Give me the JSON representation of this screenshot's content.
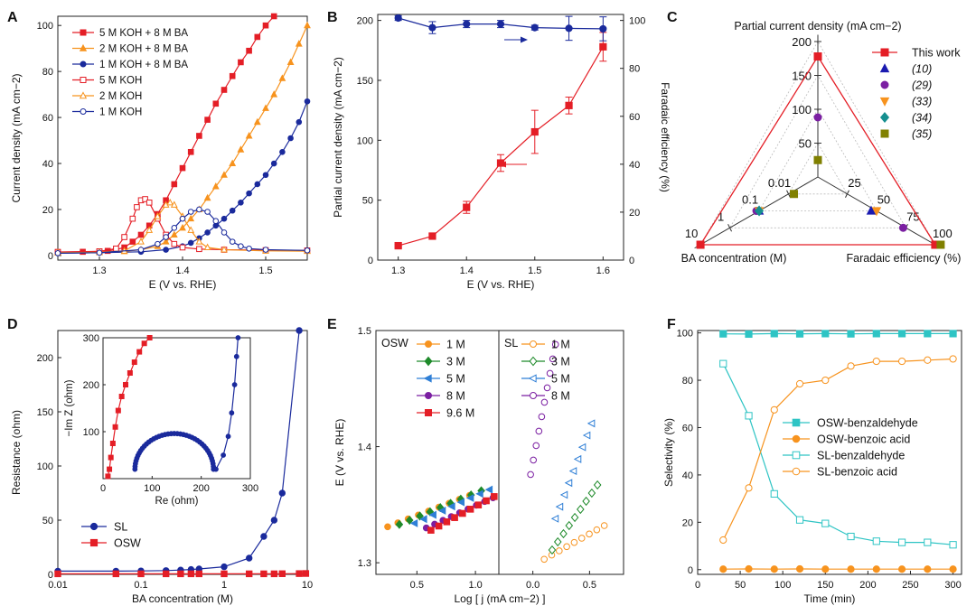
{
  "panels": {
    "A": "A",
    "B": "B",
    "C": "C",
    "D": "D",
    "E": "E",
    "F": "F"
  },
  "chart_data": [
    {
      "panel": "A",
      "type": "line",
      "xlabel": "E (V vs. RHE)",
      "ylabel": "Current density (mA cm−2)",
      "xlim": [
        1.25,
        1.55
      ],
      "ylim": [
        -2,
        104
      ],
      "xticks": [
        1.3,
        1.4,
        1.5
      ],
      "yticks": [
        0,
        20,
        40,
        60,
        80,
        100
      ],
      "legend": "top-left",
      "series": [
        {
          "name": "5 M KOH + 8 M BA",
          "color": "#e41e26",
          "marker": "square-filled",
          "x": [
            1.25,
            1.28,
            1.3,
            1.31,
            1.32,
            1.33,
            1.34,
            1.35,
            1.36,
            1.37,
            1.38,
            1.39,
            1.4,
            1.41,
            1.42,
            1.43,
            1.44,
            1.45,
            1.46,
            1.47,
            1.48,
            1.49,
            1.5,
            1.51
          ],
          "values": [
            1.5,
            1.6,
            1.8,
            2.0,
            2.5,
            3.5,
            6,
            9,
            13,
            18,
            24,
            31,
            38,
            45,
            52,
            59,
            66,
            72,
            78,
            84,
            89,
            95,
            100,
            104
          ]
        },
        {
          "name": "2 M KOH + 8 M BA",
          "color": "#f7931e",
          "marker": "triangle-filled",
          "x": [
            1.25,
            1.3,
            1.33,
            1.35,
            1.37,
            1.38,
            1.39,
            1.4,
            1.41,
            1.42,
            1.43,
            1.44,
            1.45,
            1.46,
            1.47,
            1.48,
            1.49,
            1.5,
            1.51,
            1.52,
            1.53,
            1.54,
            1.55
          ],
          "values": [
            1.2,
            1.4,
            1.8,
            2.5,
            4,
            6,
            9,
            12,
            16,
            20,
            25,
            30,
            35,
            40,
            46,
            52,
            58,
            64,
            70,
            77,
            84,
            92,
            100
          ]
        },
        {
          "name": "1 M KOH + 8 M BA",
          "color": "#1a2a9c",
          "marker": "circle-filled",
          "x": [
            1.25,
            1.3,
            1.35,
            1.38,
            1.4,
            1.41,
            1.42,
            1.43,
            1.44,
            1.45,
            1.46,
            1.47,
            1.48,
            1.49,
            1.5,
            1.51,
            1.52,
            1.53,
            1.54,
            1.55
          ],
          "values": [
            1.0,
            1.2,
            1.6,
            2.5,
            4,
            5.5,
            7.5,
            10,
            13,
            16,
            19.5,
            23,
            27,
            31,
            35,
            40,
            45,
            51,
            58,
            67
          ]
        },
        {
          "name": "5 M KOH",
          "color": "#e41e26",
          "marker": "square-open",
          "x": [
            1.25,
            1.3,
            1.32,
            1.33,
            1.34,
            1.345,
            1.35,
            1.355,
            1.36,
            1.37,
            1.38,
            1.39,
            1.4,
            1.42,
            1.45,
            1.5,
            1.55
          ],
          "values": [
            1.5,
            1.8,
            3,
            8,
            16,
            21,
            24,
            24.5,
            23,
            16,
            9,
            5,
            3.5,
            2.8,
            2.5,
            2.3,
            2.2
          ]
        },
        {
          "name": "2 M KOH",
          "color": "#f7931e",
          "marker": "triangle-open",
          "x": [
            1.25,
            1.3,
            1.33,
            1.35,
            1.36,
            1.37,
            1.38,
            1.385,
            1.39,
            1.4,
            1.41,
            1.42,
            1.43,
            1.45,
            1.5,
            1.55
          ],
          "values": [
            1.2,
            1.4,
            2,
            6,
            11,
            17,
            22,
            23,
            22,
            17,
            11,
            6,
            3.5,
            2.5,
            2.0,
            1.9
          ]
        },
        {
          "name": "1 M KOH",
          "color": "#1a2a9c",
          "marker": "circle-open",
          "x": [
            1.25,
            1.3,
            1.35,
            1.37,
            1.38,
            1.39,
            1.4,
            1.41,
            1.42,
            1.43,
            1.44,
            1.45,
            1.46,
            1.47,
            1.48,
            1.5,
            1.55
          ],
          "values": [
            1.0,
            1.2,
            2.5,
            5,
            8,
            12,
            16,
            19,
            20,
            19,
            15,
            10,
            6,
            4,
            3,
            2.5,
            2.2
          ]
        }
      ]
    },
    {
      "panel": "B",
      "type": "line",
      "xlabel": "E (V vs. RHE)",
      "ylabel": "Partial current density (mA cm−2)",
      "y2label": "Faradaic efficiency (%)",
      "xlim": [
        1.27,
        1.63
      ],
      "ylim": [
        0,
        205
      ],
      "y2lim": [
        0,
        102.5
      ],
      "xticks": [
        1.3,
        1.4,
        1.5,
        1.6
      ],
      "yticks": [
        0,
        50,
        100,
        150,
        200
      ],
      "y2ticks": [
        0,
        20,
        40,
        60,
        80,
        100
      ],
      "x": [
        1.3,
        1.35,
        1.4,
        1.45,
        1.5,
        1.55,
        1.6
      ],
      "series": [
        {
          "name": "Partial current density",
          "axis": "left",
          "color": "#e41e26",
          "marker": "square-filled",
          "values": [
            12,
            20,
            44,
            81,
            107,
            129,
            178
          ],
          "errors": [
            1,
            2,
            5,
            7,
            18,
            7,
            12
          ]
        },
        {
          "name": "Faradaic efficiency",
          "axis": "right",
          "color": "#1a2a9c",
          "marker": "circle-filled",
          "values": [
            101,
            97,
            98.5,
            98.5,
            97,
            96.7,
            96.5
          ],
          "errors": [
            1,
            2.5,
            1.5,
            1.5,
            1,
            5,
            5
          ]
        }
      ]
    },
    {
      "panel": "C",
      "type": "radar",
      "axes": [
        "Partial current density (mA cm−2)",
        "BA concentration (M)",
        "Faradaic efficiency (%)"
      ],
      "axis_ticks": {
        "current": [
          "50",
          "100",
          "150",
          "200"
        ],
        "ba": [
          "0.01",
          "0.1",
          "1",
          "10"
        ],
        "fe": [
          "25",
          "50",
          "75",
          "100"
        ]
      },
      "series": [
        {
          "name": "This work",
          "color": "#e41e26",
          "marker": "square",
          "current": 178,
          "ba": "10",
          "fe": 100
        },
        {
          "name": "(10)",
          "color": "#1a1ab0",
          "marker": "triangle-up",
          "current": null,
          "ba": "0.1",
          "fe": 50
        },
        {
          "name": "(29)",
          "color": "#7b1fa2",
          "marker": "circle",
          "current": 88,
          "ba": "0.1",
          "fe": 75
        },
        {
          "name": "(33)",
          "color": "#f7931e",
          "marker": "triangle-down",
          "current": null,
          "ba": "0.1",
          "fe": 50
        },
        {
          "name": "(34)",
          "color": "#168f8f",
          "marker": "diamond",
          "current": null,
          "ba": "0.1",
          "fe": null
        },
        {
          "name": "(35)",
          "color": "#808000",
          "marker": "square",
          "current": 25,
          "ba": "0.01",
          "fe": 100
        }
      ]
    },
    {
      "panel": "D",
      "type": "line",
      "xlabel": "BA concentration (M)",
      "ylabel": "Resistance (ohm)",
      "xscale": "log",
      "xlim": [
        0.01,
        10
      ],
      "ylim": [
        0,
        225
      ],
      "xticks": [
        "0.01",
        "0.1",
        "1",
        "10"
      ],
      "yticks": [
        0,
        50,
        100,
        150,
        200
      ],
      "legend": "bottom-left",
      "series": [
        {
          "name": "SL",
          "color": "#1a2a9c",
          "marker": "circle-filled",
          "x": [
            0.01,
            0.05,
            0.1,
            0.2,
            0.3,
            0.4,
            0.5,
            1,
            2,
            3,
            4,
            5,
            8
          ],
          "values": [
            3,
            3,
            3.2,
            3.5,
            4,
            4.5,
            5,
            7,
            15,
            35,
            50,
            75,
            225
          ]
        },
        {
          "name": "OSW",
          "color": "#e41e26",
          "marker": "square-filled",
          "x": [
            0.01,
            0.05,
            0.1,
            0.2,
            0.3,
            0.4,
            0.5,
            1,
            2,
            3,
            4,
            5,
            8,
            9.6
          ],
          "values": [
            0.5,
            0.5,
            0.5,
            0.5,
            0.5,
            0.5,
            0.5,
            0.5,
            0.5,
            0.5,
            0.5,
            0.6,
            0.7,
            0.8
          ]
        }
      ],
      "inset": {
        "type": "scatter",
        "xlabel": "Re (ohm)",
        "ylabel": "−Im Z (ohm)",
        "xlim": [
          0,
          300
        ],
        "ylim": [
          0,
          300
        ],
        "xticks": [
          0,
          100,
          200,
          300
        ],
        "yticks": [
          100,
          200,
          300
        ],
        "series": [
          {
            "name": "OSW",
            "color": "#e41e26",
            "marker": "square-filled",
            "x": [
              10,
              13,
              16,
              20,
              25,
              31,
              38,
              46,
              55,
              64,
              74,
              84,
              95
            ],
            "y": [
              5,
              20,
              45,
              75,
              110,
              145,
              175,
              200,
              225,
              248,
              270,
              288,
              300
            ]
          },
          {
            "name": "SL",
            "color": "#1a2a9c",
            "marker": "circle-filled",
            "semicircle": {
              "center": [
                145,
                0
              ],
              "radius": 80,
              "tail": [
                [
                  230,
                  20
                ],
                [
                  245,
                  50
                ],
                [
                  255,
                  90
                ],
                [
                  262,
                  140
                ],
                [
                  268,
                  200
                ],
                [
                  272,
                  260
                ],
                [
                  275,
                  300
                ]
              ]
            }
          }
        ]
      }
    },
    {
      "panel": "E",
      "type": "scatter",
      "xlabel": "Log [ j (mA cm−2) ]",
      "ylabel": "E (V vs. RHE)",
      "ylim": [
        1.29,
        1.5
      ],
      "yticks": [
        1.3,
        1.4,
        1.5
      ],
      "subpanels": [
        {
          "label": "OSW",
          "xlim": [
            0.15,
            1.2
          ],
          "xticks": [
            0.5,
            1.0
          ],
          "series": [
            {
              "name": "1 M",
              "color": "#f7931e",
              "marker": "circle-filled",
              "x0": 0.25,
              "x1": 0.95,
              "y0": 1.331,
              "y1": 1.358,
              "n": 9
            },
            {
              "name": "3 M",
              "color": "#1e8a2a",
              "marker": "diamond-filled",
              "x0": 0.35,
              "x1": 1.05,
              "y0": 1.333,
              "y1": 1.362,
              "n": 9
            },
            {
              "name": "5 M",
              "color": "#2f7fd6",
              "marker": "triangle-left-filled",
              "x0": 0.48,
              "x1": 1.12,
              "y0": 1.334,
              "y1": 1.363,
              "n": 9
            },
            {
              "name": "8 M",
              "color": "#7b1fa2",
              "marker": "circle-filled",
              "x0": 0.58,
              "x1": 1.15,
              "y0": 1.33,
              "y1": 1.356,
              "n": 9
            },
            {
              "name": "9.6 M",
              "color": "#e41e26",
              "marker": "square-filled",
              "x0": 0.62,
              "x1": 1.16,
              "y0": 1.328,
              "y1": 1.357,
              "n": 9
            }
          ]
        },
        {
          "label": "SL",
          "xlim": [
            -0.3,
            0.8
          ],
          "xticks": [
            0.0,
            0.5
          ],
          "series": [
            {
              "name": "1 M",
              "color": "#f7931e",
              "marker": "circle-open",
              "x0": 0.1,
              "x1": 0.63,
              "y0": 1.303,
              "y1": 1.332,
              "n": 9
            },
            {
              "name": "3 M",
              "color": "#1e8a2a",
              "marker": "diamond-open",
              "x0": 0.17,
              "x1": 0.57,
              "y0": 1.311,
              "y1": 1.367,
              "n": 9
            },
            {
              "name": "5 M",
              "color": "#2f7fd6",
              "marker": "triangle-left-open",
              "x0": 0.2,
              "x1": 0.52,
              "y0": 1.338,
              "y1": 1.42,
              "n": 9
            },
            {
              "name": "8 M",
              "color": "#7b1fa2",
              "marker": "circle-open",
              "x0": -0.02,
              "x1": 0.2,
              "y0": 1.376,
              "y1": 1.488,
              "n": 10
            }
          ]
        }
      ]
    },
    {
      "panel": "F",
      "type": "line",
      "xlabel": "Time (min)",
      "ylabel": "Selectivity (%)",
      "xlim": [
        0,
        310
      ],
      "ylim": [
        -2,
        101
      ],
      "xticks": [
        0,
        50,
        100,
        150,
        200,
        250,
        300
      ],
      "yticks": [
        0,
        20,
        40,
        60,
        80,
        100
      ],
      "legend": "right",
      "x": [
        30,
        60,
        90,
        120,
        150,
        180,
        210,
        240,
        270,
        300
      ],
      "series": [
        {
          "name": "OSW-benzaldehyde",
          "color": "#2ec4c4",
          "marker": "square-filled",
          "values": [
            99.6,
            99.5,
            99.7,
            99.6,
            99.7,
            99.6,
            99.7,
            99.7,
            99.7,
            99.7
          ]
        },
        {
          "name": "OSW-benzoic acid",
          "color": "#f7931e",
          "marker": "circle-filled",
          "values": [
            0.2,
            0.3,
            0.2,
            0.3,
            0.2,
            0.2,
            0.2,
            0.2,
            0.2,
            0.2
          ]
        },
        {
          "name": "SL-benzaldehyde",
          "color": "#2ec4c4",
          "marker": "square-open",
          "values": [
            87,
            65,
            32,
            21,
            19.5,
            14,
            12,
            11.5,
            11.5,
            10.5
          ]
        },
        {
          "name": "SL-benzoic acid",
          "color": "#f7931e",
          "marker": "circle-open",
          "values": [
            12.5,
            34.5,
            67.5,
            78.5,
            80,
            86,
            88,
            88,
            88.5,
            89
          ]
        }
      ]
    }
  ]
}
